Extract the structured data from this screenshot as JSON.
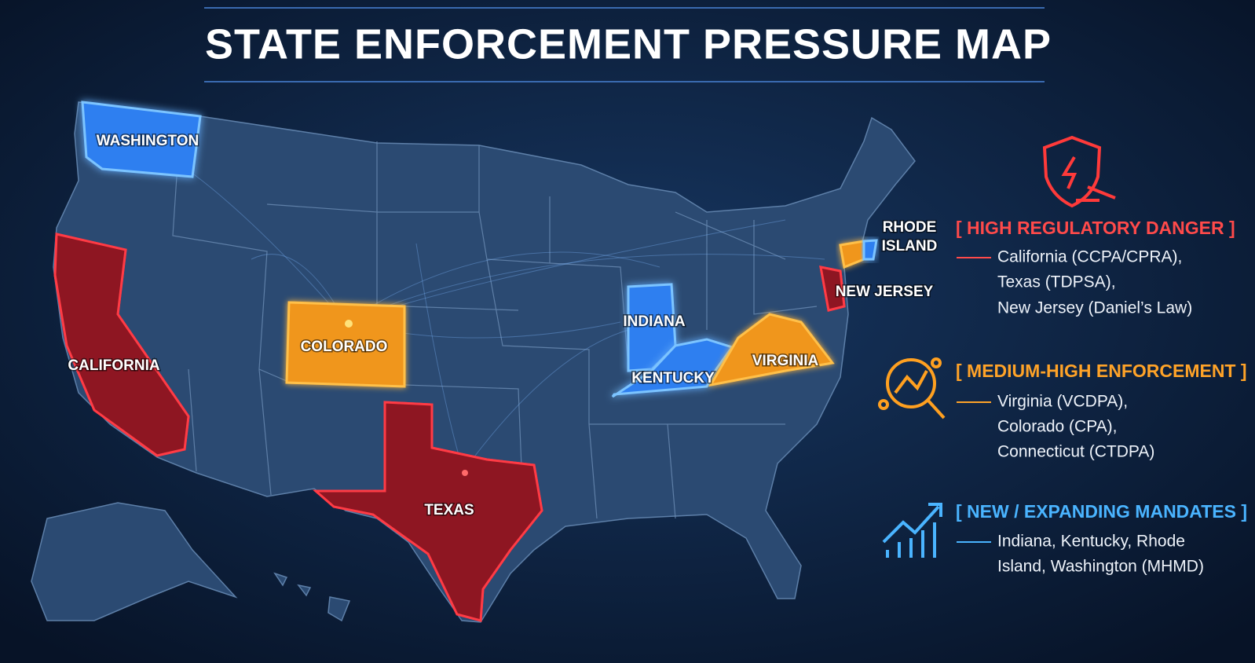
{
  "title": "STATE ENFORCEMENT PRESSURE MAP",
  "states": {
    "washington": "WASHINGTON",
    "california": "CALIFORNIA",
    "colorado": "COLORADO",
    "texas": "TEXAS",
    "indiana": "INDIANA",
    "kentucky": "KENTUCKY",
    "virginia": "VIRGINIA",
    "rhode_island": [
      "RHODE",
      "ISLAND"
    ],
    "new_jersey": "NEW JERSEY"
  },
  "legend": [
    {
      "heading": "[ HIGH REGULATORY DANGER ]",
      "lines": [
        "California (CCPA/CPRA),",
        "Texas (TDPSA),",
        "New Jersey (Daniel’s Law)"
      ]
    },
    {
      "heading": "[ MEDIUM-HIGH ENFORCEMENT ]",
      "lines": [
        "Virginia (VCDPA),",
        "Colorado (CPA),",
        "Connecticut (CTDPA)"
      ]
    },
    {
      "heading": "[ NEW / EXPANDING MANDATES ]",
      "lines": [
        "Indiana, Kentucky, Rhode",
        "Island, Washington (MHMD)"
      ]
    }
  ]
}
